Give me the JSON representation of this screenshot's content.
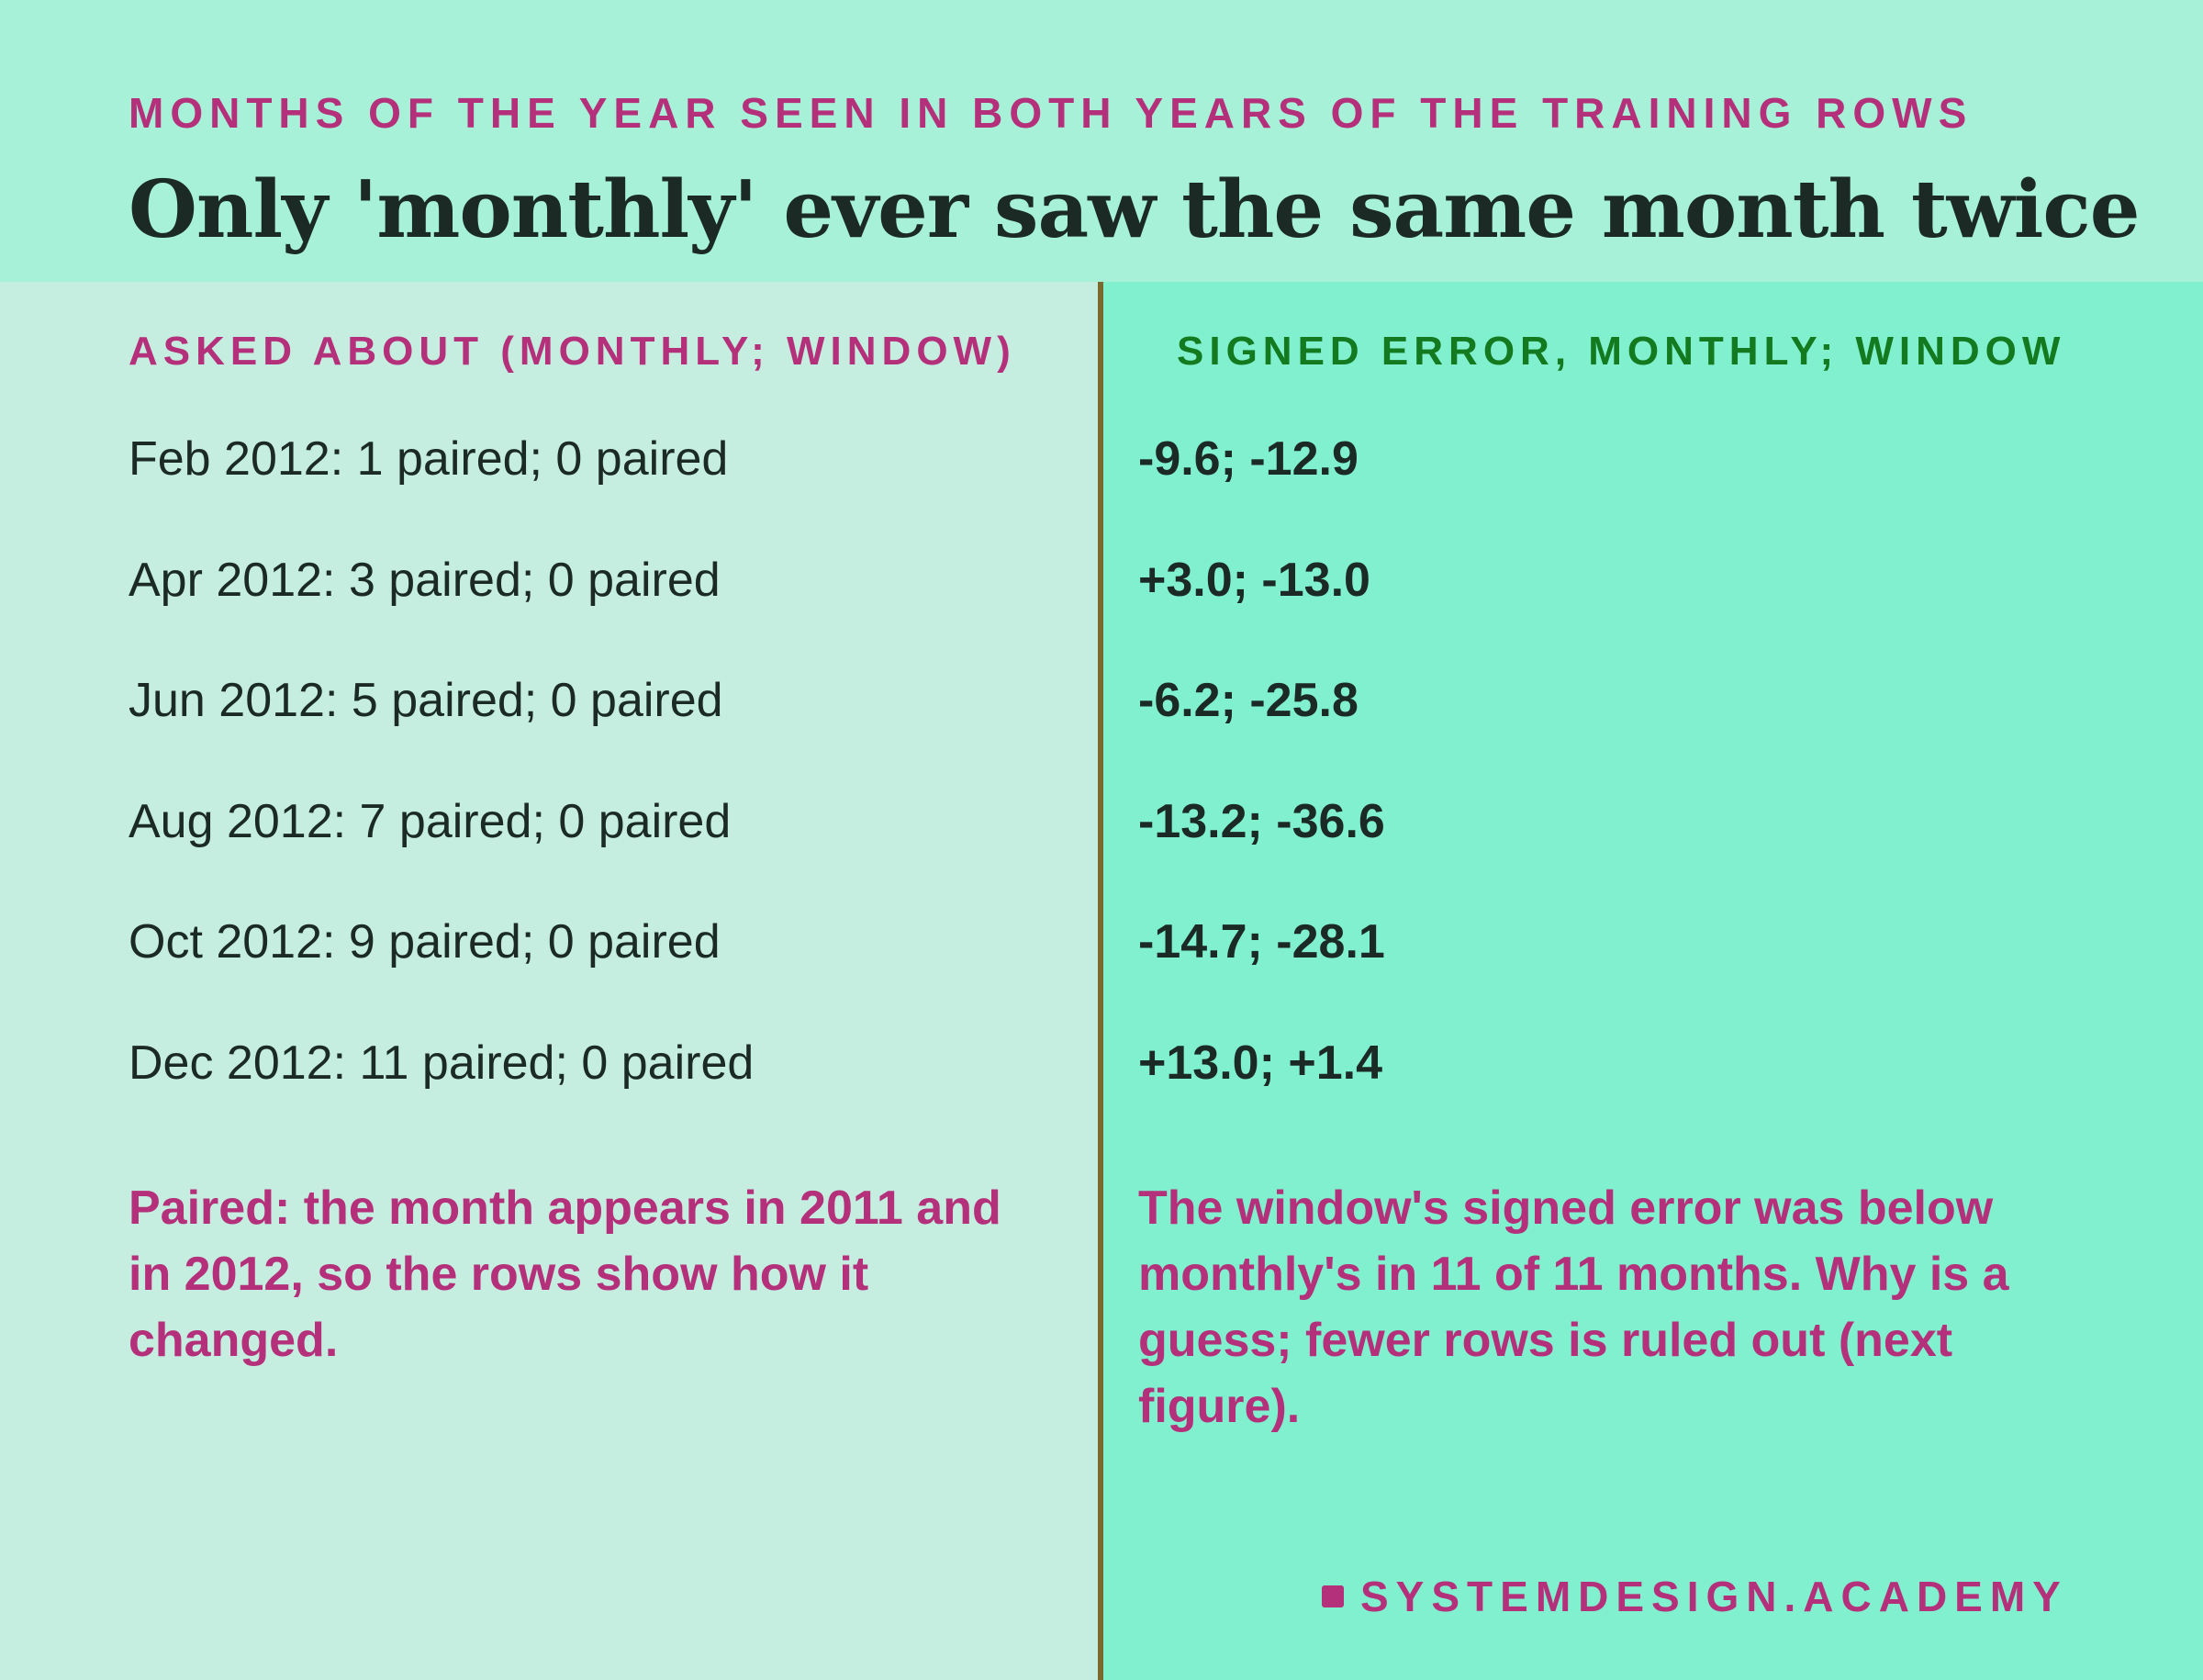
{
  "header": {
    "kicker": "MONTHS OF THE YEAR SEEN IN BOTH YEARS OF THE TRAINING ROWS",
    "title": "Only 'monthly' ever saw the same month twice"
  },
  "left": {
    "heading": "ASKED ABOUT (MONTHLY; WINDOW)",
    "rows": [
      "Feb 2012: 1 paired; 0 paired",
      "Apr 2012: 3 paired; 0 paired",
      "Jun 2012: 5 paired; 0 paired",
      "Aug 2012: 7 paired; 0 paired",
      "Oct 2012: 9 paired; 0 paired",
      "Dec 2012: 11 paired; 0 paired"
    ],
    "note": "Paired: the month appears in 2011 and in 2012, so the rows show how it changed."
  },
  "right": {
    "heading": "SIGNED ERROR, MONTHLY; WINDOW",
    "rows": [
      "-9.6; -12.9",
      "+3.0; -13.0",
      "-6.2; -25.8",
      "-13.2; -36.6",
      "-14.7; -28.1",
      "+13.0; +1.4"
    ],
    "note": "The window's signed error was below monthly's in 11 of 11 months. Why is a guess; fewer rows is ruled out (next figure)."
  },
  "footer": {
    "brand": "SYSTEMDESIGN.ACADEMY"
  },
  "colors": {
    "accent": "#b5307a",
    "heading_right": "#137a20",
    "divider": "#7a6a2e"
  }
}
